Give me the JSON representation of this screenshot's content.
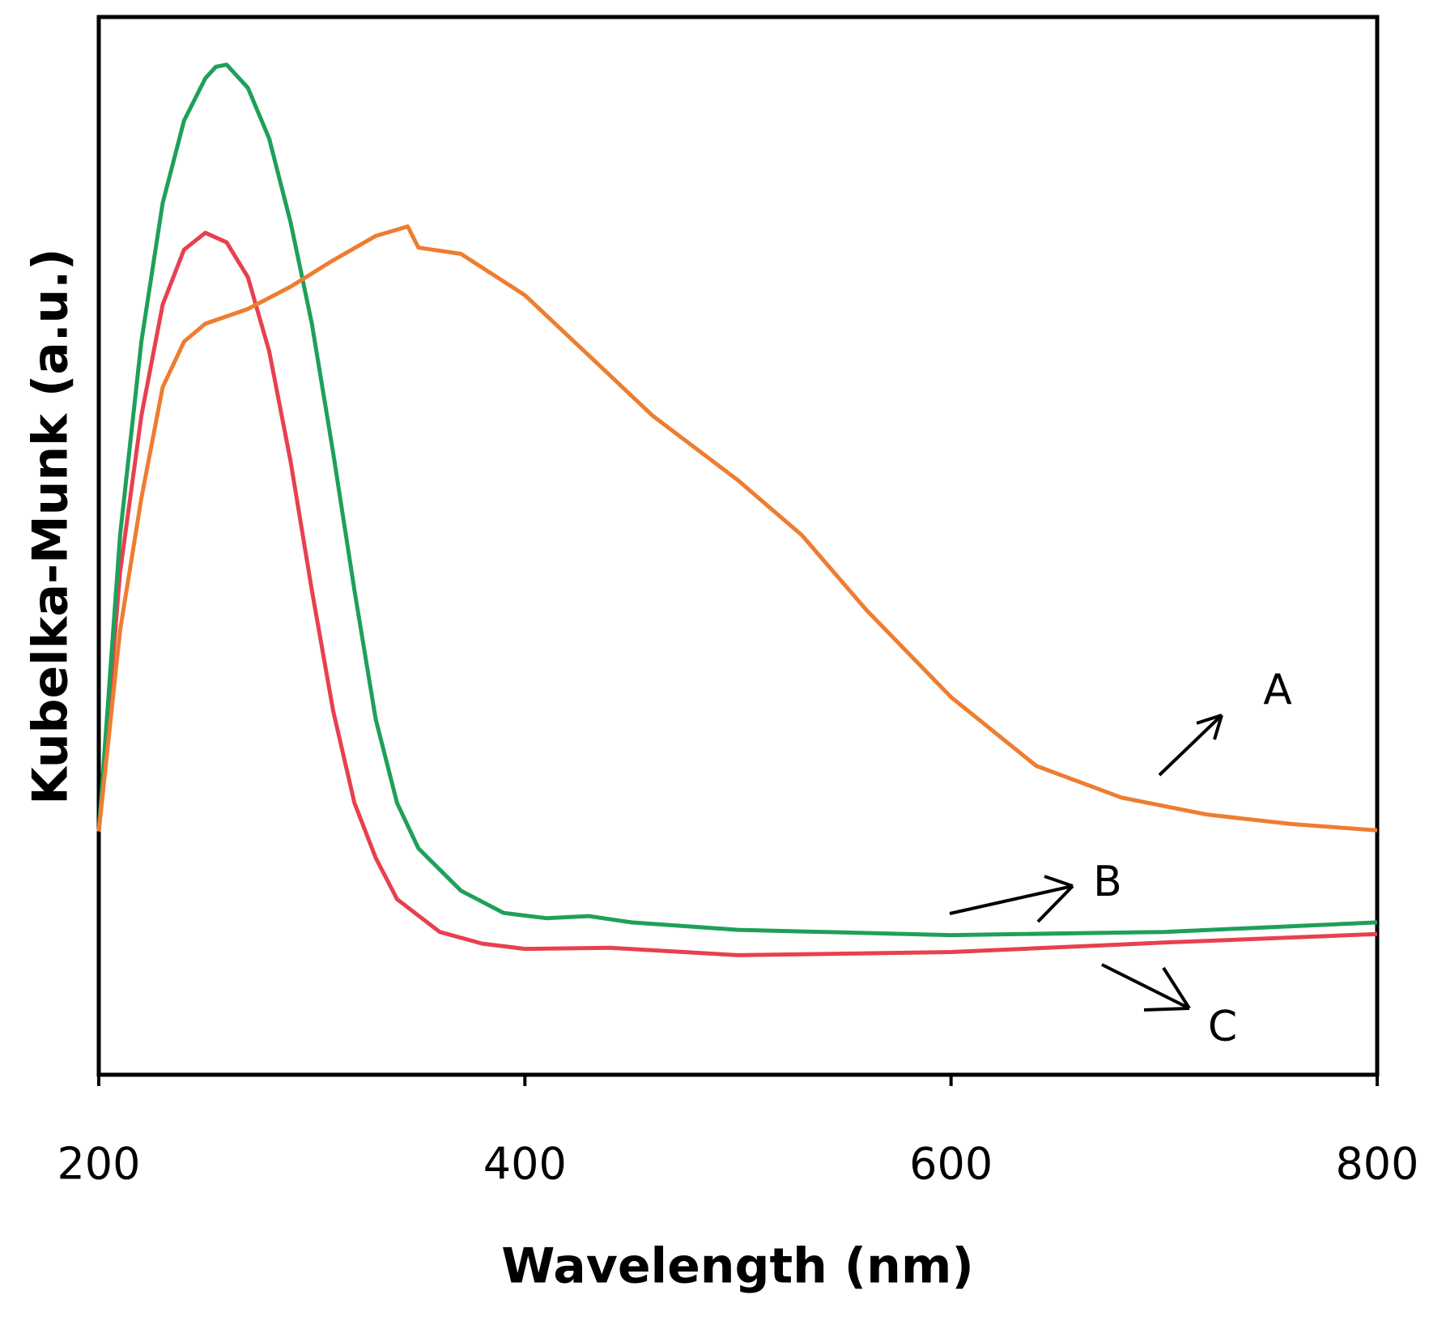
{
  "chart_data": {
    "type": "line",
    "xlabel": "Wavelength (nm)",
    "ylabel": "Kubelka-Munk (a.u.)",
    "xlim": [
      200,
      800
    ],
    "ylim": [
      0,
      100
    ],
    "xticks": [
      200,
      400,
      600,
      800
    ],
    "grid": false,
    "annotations": [
      "A",
      "B",
      "C"
    ],
    "series": [
      {
        "name": "A",
        "color": "#ee7d31",
        "x": [
          200,
          210,
          220,
          230,
          240,
          250,
          270,
          290,
          310,
          330,
          345,
          350,
          370,
          400,
          430,
          460,
          500,
          530,
          560,
          600,
          640,
          680,
          720,
          760,
          800
        ],
        "values": [
          23,
          42,
          54.5,
          65,
          69.3,
          71,
          72.4,
          74.5,
          77,
          79.3,
          80.2,
          78.2,
          77.6,
          73.7,
          68,
          62.3,
          56.2,
          51,
          44,
          35.7,
          29.2,
          26.2,
          24.6,
          23.7,
          23.1
        ]
      },
      {
        "name": "B",
        "color": "#1ea05a",
        "x": [
          200,
          210,
          220,
          230,
          240,
          250,
          255,
          260,
          270,
          280,
          290,
          300,
          310,
          320,
          330,
          340,
          350,
          370,
          390,
          410,
          430,
          450,
          500,
          600,
          700,
          800
        ],
        "values": [
          23,
          51,
          69.3,
          82.4,
          90.2,
          94.2,
          95.3,
          95.5,
          93.3,
          88.5,
          80.6,
          71,
          58.8,
          45.8,
          33.6,
          25.7,
          21.4,
          17.4,
          15.3,
          14.8,
          15,
          14.4,
          13.7,
          13.2,
          13.5,
          14.4
        ]
      },
      {
        "name": "C",
        "color": "#e8404f",
        "x": [
          200,
          210,
          220,
          230,
          240,
          250,
          260,
          270,
          280,
          290,
          300,
          310,
          320,
          330,
          340,
          360,
          380,
          400,
          440,
          500,
          600,
          700,
          800
        ],
        "values": [
          23,
          47.5,
          62.3,
          72.8,
          78,
          79.6,
          78.7,
          75.4,
          68.4,
          58,
          45.8,
          34.4,
          25.7,
          20.5,
          16.6,
          13.5,
          12.4,
          11.9,
          12,
          11.3,
          11.6,
          12.5,
          13.3
        ]
      }
    ]
  }
}
